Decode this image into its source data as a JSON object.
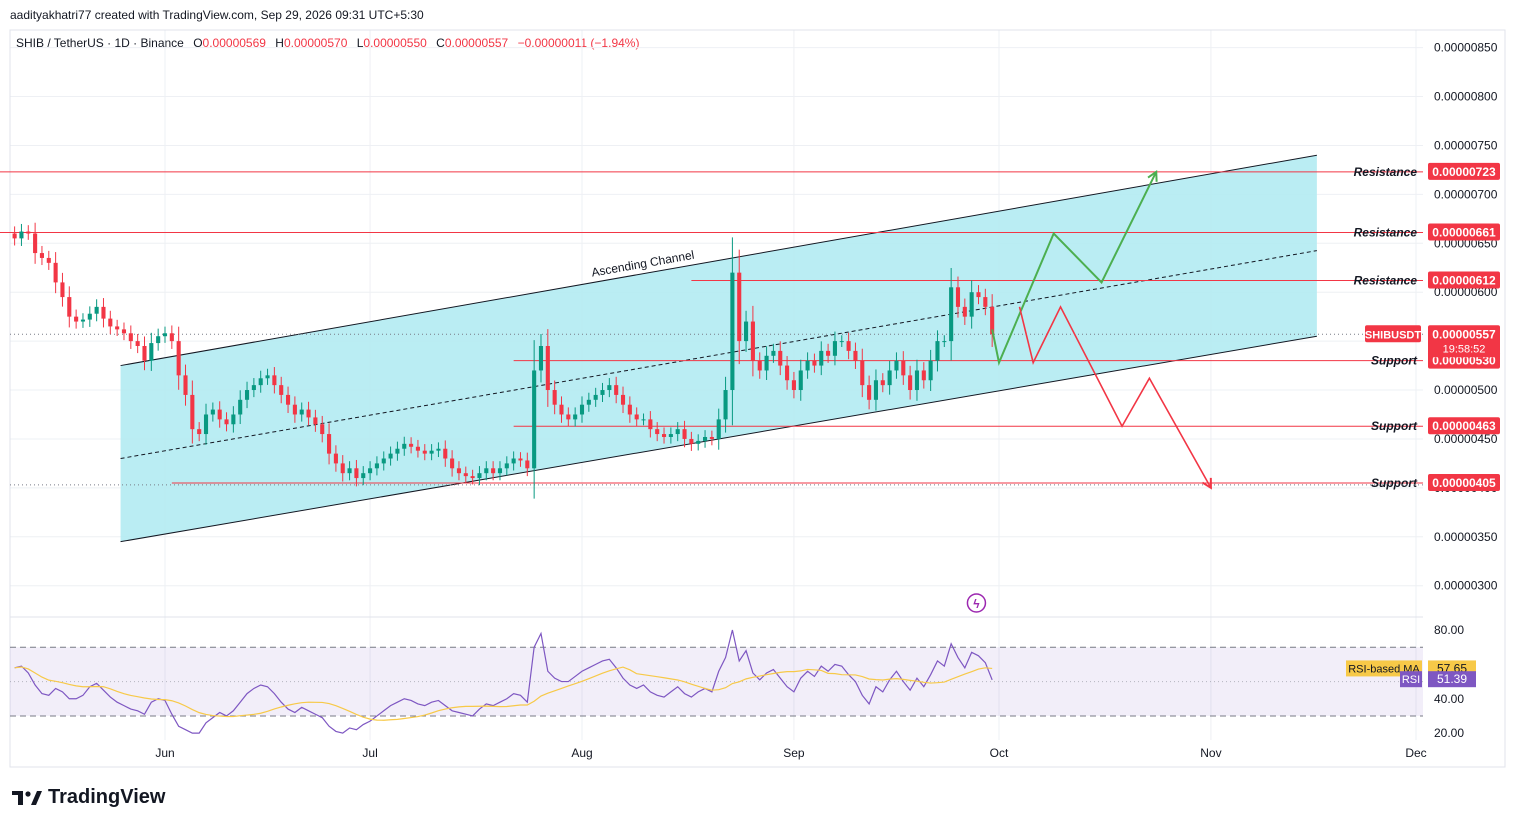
{
  "header": {
    "author_line": "aadityakhatri77 created with TradingView.com, Sep 29, 2026 09:31 UTC+5:30"
  },
  "legend": {
    "symbol_line": "SHIB / TetherUS · 1D · Binance",
    "open_label": "O",
    "open": "0.00000569",
    "high_label": "H",
    "high": "0.00000570",
    "low_label": "L",
    "low": "0.00000550",
    "close_label": "C",
    "close": "0.00000557",
    "change": "−0.00000011 (−1.94%)"
  },
  "brand": {
    "name": "TradingView"
  },
  "colors": {
    "up": "#089981",
    "down": "#f23645",
    "channel_fill": "#b2ebf2",
    "rsi": "#7e57c2",
    "rsi_ma": "#f7c948",
    "green_path": "#4caf50",
    "red_path": "#f23645"
  },
  "price_badge": {
    "symbol": "SHIBUSDT",
    "price": "0.00000557",
    "countdown": "19:58:52"
  },
  "annotations": {
    "channel_label": "Ascending Channel"
  },
  "chart_data": {
    "type": "candlestick",
    "y_axis": {
      "ylim": [
        2.68e-06,
        8.68e-06
      ],
      "ticks": [
        "0.00000300",
        "0.00000350",
        "0.00000400",
        "0.00000450",
        "0.00000500",
        "0.00000550",
        "0.00000600",
        "0.00000650",
        "0.00000700",
        "0.00000750",
        "0.00000800",
        "0.00000850"
      ]
    },
    "x_axis": {
      "ticks": [
        {
          "label": "Jun",
          "day": 0
        },
        {
          "label": "Jul",
          "day": 30
        },
        {
          "label": "Aug",
          "day": 61
        },
        {
          "label": "Sep",
          "day": 92
        },
        {
          "label": "Oct",
          "day": 122
        },
        {
          "label": "Nov",
          "day": 153
        },
        {
          "label": "Dec",
          "day": 183
        }
      ]
    },
    "levels": [
      {
        "type": "Resistance",
        "value": "0.00000723"
      },
      {
        "type": "Resistance",
        "value": "0.00000661"
      },
      {
        "type": "Resistance",
        "value": "0.00000612"
      },
      {
        "type": "Support",
        "value": "0.00000530"
      },
      {
        "type": "Support",
        "value": "0.00000463"
      },
      {
        "type": "Support",
        "value": "0.00000405"
      }
    ],
    "closes": [
      6.55,
      6.62,
      6.6,
      6.4,
      6.35,
      6.3,
      6.1,
      5.95,
      5.75,
      5.7,
      5.72,
      5.78,
      5.85,
      5.73,
      5.65,
      5.62,
      5.58,
      5.5,
      5.45,
      5.3,
      5.48,
      5.55,
      5.58,
      5.5,
      5.15,
      4.95,
      4.6,
      4.55,
      4.75,
      4.8,
      4.7,
      4.65,
      4.75,
      4.9,
      5.0,
      5.05,
      5.12,
      5.15,
      5.05,
      4.95,
      4.85,
      4.75,
      4.8,
      4.72,
      4.65,
      4.55,
      4.35,
      4.25,
      4.15,
      4.2,
      4.1,
      4.15,
      4.2,
      4.25,
      4.3,
      4.35,
      4.4,
      4.45,
      4.42,
      4.38,
      4.35,
      4.38,
      4.4,
      4.3,
      4.2,
      4.15,
      4.12,
      4.1,
      4.15,
      4.2,
      4.15,
      4.2,
      4.25,
      4.3,
      4.28,
      4.2,
      5.2,
      5.45,
      5.0,
      4.85,
      4.75,
      4.7,
      4.75,
      4.85,
      4.9,
      4.95,
      5.0,
      5.05,
      4.95,
      4.85,
      4.75,
      4.7,
      4.7,
      4.6,
      4.55,
      4.52,
      4.55,
      4.6,
      4.5,
      4.45,
      4.48,
      4.52,
      4.5,
      4.7,
      5.0,
      6.2,
      5.5,
      5.7,
      5.3,
      5.2,
      5.35,
      5.4,
      5.25,
      5.1,
      5.0,
      5.2,
      5.3,
      5.25,
      5.4,
      5.35,
      5.5,
      5.5,
      5.4,
      5.3,
      5.05,
      4.9,
      5.1,
      5.05,
      5.2,
      5.3,
      5.15,
      5.0,
      5.2,
      5.1,
      5.3,
      5.5,
      5.5,
      6.05,
      5.85,
      5.75,
      6.0,
      5.95,
      5.85,
      5.57
    ]
  },
  "rsi": {
    "axis_ticks": [
      "80.00",
      "40.00",
      "20.00"
    ],
    "ma_label": "RSI-based MA",
    "ma_value": "57.65",
    "rsi_label": "RSI",
    "rsi_value": "51.39",
    "values": [
      58,
      59,
      55,
      48,
      43,
      42,
      46,
      44,
      40,
      40,
      42,
      47,
      49,
      45,
      41,
      38,
      36,
      34,
      33,
      31,
      38,
      40,
      39,
      31,
      24,
      22,
      20,
      20,
      26,
      29,
      32,
      30,
      33,
      38,
      43,
      46,
      48,
      47,
      43,
      38,
      34,
      32,
      35,
      33,
      31,
      29,
      24,
      21,
      20,
      23,
      22,
      25,
      27,
      30,
      33,
      36,
      38,
      40,
      39,
      37,
      36,
      38,
      39,
      36,
      33,
      32,
      31,
      30,
      34,
      37,
      36,
      38,
      40,
      43,
      42,
      38,
      70,
      78,
      56,
      52,
      50,
      50,
      53,
      56,
      58,
      60,
      62,
      63,
      58,
      52,
      48,
      46,
      48,
      44,
      42,
      41,
      44,
      47,
      43,
      41,
      44,
      46,
      44,
      56,
      64,
      80,
      62,
      68,
      55,
      51,
      55,
      57,
      52,
      47,
      44,
      52,
      56,
      53,
      59,
      56,
      60,
      59,
      54,
      50,
      42,
      37,
      47,
      44,
      51,
      56,
      50,
      45,
      52,
      47,
      54,
      62,
      59,
      72,
      64,
      58,
      67,
      65,
      61,
      51
    ]
  }
}
